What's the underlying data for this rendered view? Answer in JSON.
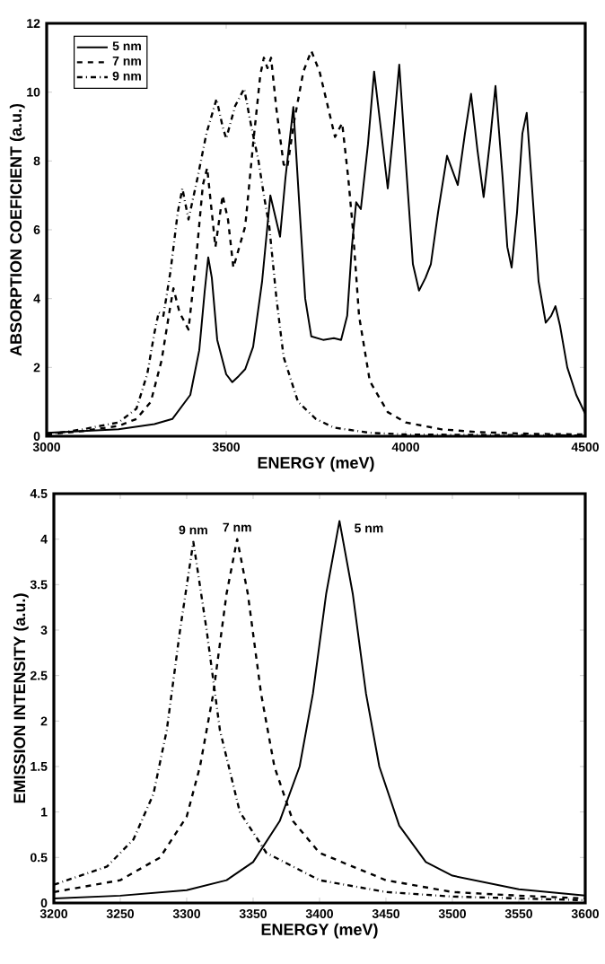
{
  "chart_data": [
    {
      "type": "line",
      "xlabel": "ENERGY (meV)",
      "ylabel": "ABSORPTION COEFICIENT (a.u.)",
      "xlim": [
        3000,
        4500
      ],
      "ylim": [
        0,
        12
      ],
      "xticks": [
        3000,
        3500,
        4000,
        4500
      ],
      "yticks": [
        0,
        2,
        4,
        6,
        8,
        10,
        12
      ],
      "legend": "top left",
      "series": [
        {
          "name": "5 nm",
          "color": "#000000",
          "line_style": "solid",
          "x": [
            3000,
            3100,
            3200,
            3300,
            3350,
            3400,
            3425,
            3440,
            3450,
            3460,
            3475,
            3500,
            3517,
            3535,
            3553,
            3575,
            3600,
            3623,
            3650,
            3665,
            3687,
            3705,
            3720,
            3737,
            3770,
            3800,
            3820,
            3837,
            3850,
            3862,
            3875,
            3895,
            3912,
            3930,
            3950,
            3965,
            3982,
            4000,
            4020,
            4037,
            4055,
            4070,
            4090,
            4115,
            4145,
            4165,
            4182,
            4200,
            4217,
            4235,
            4250,
            4270,
            4283,
            4295,
            4310,
            4325,
            4337,
            4350,
            4370,
            4390,
            4405,
            4417,
            4430,
            4450,
            4475,
            4500
          ],
          "values": [
            0.1,
            0.15,
            0.2,
            0.35,
            0.5,
            1.2,
            2.5,
            4.2,
            5.2,
            4.6,
            2.8,
            1.8,
            1.57,
            1.75,
            1.95,
            2.6,
            4.5,
            7.0,
            5.8,
            7.5,
            9.57,
            6.5,
            4.0,
            2.9,
            2.8,
            2.85,
            2.8,
            3.5,
            5.5,
            6.8,
            6.6,
            8.5,
            10.6,
            9.0,
            7.2,
            8.8,
            10.8,
            8.0,
            5.0,
            4.23,
            4.6,
            5.0,
            6.5,
            8.15,
            7.3,
            8.8,
            9.95,
            8.3,
            6.95,
            8.6,
            10.18,
            7.5,
            5.5,
            4.9,
            6.5,
            8.8,
            9.4,
            7.5,
            4.5,
            3.3,
            3.5,
            3.78,
            3.2,
            2.0,
            1.2,
            0.65
          ]
        },
        {
          "name": "7 nm",
          "color": "#000000",
          "line_style": "dashed",
          "x": [
            3000,
            3100,
            3200,
            3250,
            3290,
            3320,
            3340,
            3353,
            3370,
            3395,
            3415,
            3435,
            3447,
            3470,
            3490,
            3505,
            3520,
            3553,
            3575,
            3595,
            3605,
            3615,
            3625,
            3640,
            3660,
            3670,
            3690,
            3715,
            3737,
            3760,
            3785,
            3803,
            3823,
            3840,
            3853,
            3870,
            3900,
            3950,
            4000,
            4100,
            4200,
            4350,
            4500
          ],
          "values": [
            0.05,
            0.15,
            0.3,
            0.5,
            1.0,
            2.2,
            3.5,
            4.3,
            3.6,
            3.1,
            5.0,
            7.3,
            7.8,
            5.5,
            7.0,
            6.3,
            4.9,
            6.1,
            8.5,
            10.5,
            11.0,
            10.7,
            11.0,
            9.5,
            7.9,
            7.8,
            9.2,
            10.6,
            11.2,
            10.6,
            9.5,
            8.7,
            9.1,
            7.5,
            6.0,
            3.5,
            1.6,
            0.7,
            0.4,
            0.2,
            0.12,
            0.07,
            0.05
          ]
        },
        {
          "name": "9 nm",
          "color": "#000000",
          "line_style": "dashdot",
          "x": [
            3000,
            3100,
            3200,
            3250,
            3280,
            3300,
            3312,
            3325,
            3345,
            3365,
            3378,
            3395,
            3420,
            3445,
            3473,
            3490,
            3500,
            3525,
            3550,
            3570,
            3590,
            3605,
            3620,
            3640,
            3660,
            3700,
            3750,
            3800,
            3900,
            4000,
            4500
          ],
          "values": [
            0.05,
            0.2,
            0.4,
            0.8,
            1.8,
            3.0,
            3.6,
            3.5,
            4.8,
            6.5,
            7.2,
            6.3,
            7.5,
            8.8,
            9.8,
            9.0,
            8.65,
            9.6,
            10.1,
            9.0,
            8.0,
            7.0,
            6.1,
            4.0,
            2.3,
            1.0,
            0.5,
            0.25,
            0.1,
            0.05,
            0.02
          ]
        }
      ]
    },
    {
      "type": "line",
      "xlabel": "ENERGY (meV)",
      "ylabel": "EMISSION INTENSITY (a.u.)",
      "xlim": [
        3200,
        3600
      ],
      "ylim": [
        0,
        4.5
      ],
      "xticks": [
        3200,
        3250,
        3300,
        3350,
        3400,
        3450,
        3500,
        3550,
        3600
      ],
      "yticks": [
        0,
        0.5,
        1,
        1.5,
        2,
        2.5,
        3,
        3.5,
        4,
        4.5
      ],
      "legend": false,
      "series": [
        {
          "name": "5 nm",
          "color": "#000000",
          "line_style": "solid",
          "x": [
            3200,
            3250,
            3300,
            3330,
            3350,
            3370,
            3385,
            3395,
            3405,
            3415,
            3425,
            3435,
            3445,
            3460,
            3480,
            3500,
            3550,
            3600
          ],
          "values": [
            0.05,
            0.08,
            0.14,
            0.25,
            0.45,
            0.9,
            1.5,
            2.3,
            3.4,
            4.2,
            3.4,
            2.3,
            1.5,
            0.85,
            0.45,
            0.3,
            0.15,
            0.08
          ]
        },
        {
          "name": "7 nm",
          "color": "#000000",
          "line_style": "dashed",
          "x": [
            3200,
            3250,
            3280,
            3300,
            3310,
            3320,
            3330,
            3338,
            3346,
            3356,
            3366,
            3380,
            3400,
            3450,
            3500,
            3550,
            3600
          ],
          "values": [
            0.12,
            0.25,
            0.5,
            0.95,
            1.5,
            2.3,
            3.4,
            4.0,
            3.4,
            2.3,
            1.5,
            0.9,
            0.55,
            0.25,
            0.12,
            0.08,
            0.05
          ]
        },
        {
          "name": "9 nm",
          "color": "#000000",
          "line_style": "dashdot",
          "x": [
            3200,
            3240,
            3260,
            3275,
            3285,
            3295,
            3305,
            3315,
            3325,
            3340,
            3360,
            3400,
            3450,
            3500,
            3600
          ],
          "values": [
            0.2,
            0.4,
            0.7,
            1.2,
            1.9,
            3.0,
            3.97,
            3.0,
            1.9,
            1.0,
            0.55,
            0.25,
            0.12,
            0.07,
            0.03
          ]
        }
      ]
    }
  ]
}
